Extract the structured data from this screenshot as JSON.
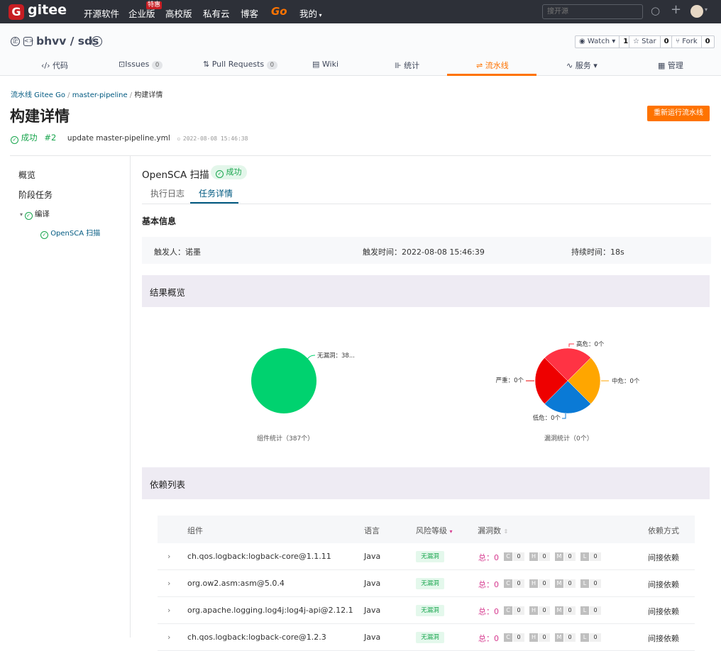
{
  "topbar": {
    "logo_text": "gitee",
    "nav": [
      "开源软件",
      "企业版",
      "高校版",
      "私有云",
      "博客"
    ],
    "hot_badge": "特惠",
    "go_label": "Go",
    "mine": "我的",
    "search_placeholder": "搜开源"
  },
  "repo": {
    "title": "bhvv / sds",
    "watch_label": "Watch",
    "watch_count": "1",
    "star_label": "Star",
    "star_count": "0",
    "fork_label": "Fork",
    "fork_count": "0",
    "tabs": [
      {
        "label": "代码"
      },
      {
        "label": "Issues",
        "count": "0"
      },
      {
        "label": "Pull Requests",
        "count": "0"
      },
      {
        "label": "Wiki"
      },
      {
        "label": "统计"
      },
      {
        "label": "流水线"
      },
      {
        "label": "服务"
      },
      {
        "label": "管理"
      }
    ]
  },
  "breadcrumb": {
    "part1": "流水线 Gitee Go",
    "part2": "master-pipeline",
    "part3": "构建详情"
  },
  "page": {
    "title": "构建详情",
    "rerun_button": "重新运行流水线",
    "status": "成功",
    "run_number": "#2",
    "commit_message": "update master-pipeline.yml",
    "timestamp": "2022-08-08 15:46:38"
  },
  "sidebar": {
    "overview": "概览",
    "stages": "阶段任务",
    "stage_name": "编译",
    "job_name": "OpenSCA 扫描"
  },
  "job": {
    "title": "OpenSCA 扫描",
    "status": "成功",
    "tab_log": "执行日志",
    "tab_detail": "任务详情",
    "basic_info_title": "基本信息",
    "trigger": "触发人：诺墨",
    "trigger_time": "触发时间：2022-08-08 15:46:39",
    "duration": "持续时间：18s",
    "overview_title": "结果概览",
    "deps_title": "依赖列表"
  },
  "chart_data": [
    {
      "type": "pie",
      "caption": "组件统计（387个）",
      "slices": [
        {
          "label": "无漏洞：38...",
          "value": 387,
          "color": "#00d26f"
        }
      ]
    },
    {
      "type": "pie",
      "caption": "漏洞统计（0个）",
      "slices": [
        {
          "label": "高危：0个",
          "value": 0,
          "color": "#ff3344"
        },
        {
          "label": "中危：0个",
          "value": 0,
          "color": "#ffa600"
        },
        {
          "label": "低危：0个",
          "value": 0,
          "color": "#0a7ad6"
        },
        {
          "label": "严重：0个",
          "value": 0,
          "color": "#ee0000"
        }
      ]
    }
  ],
  "table": {
    "headers": {
      "component": "组件",
      "language": "语言",
      "risk": "风险等级",
      "vulns": "漏洞数",
      "dep": "依赖方式"
    },
    "rows": [
      {
        "component": "ch.qos.logback:logback-core@1.1.11",
        "language": "Java",
        "risk": "无漏洞",
        "total": "总：0",
        "c": "0",
        "h": "0",
        "m": "0",
        "l": "0",
        "dep": "间接依赖"
      },
      {
        "component": "org.ow2.asm:asm@5.0.4",
        "language": "Java",
        "risk": "无漏洞",
        "total": "总：0",
        "c": "0",
        "h": "0",
        "m": "0",
        "l": "0",
        "dep": "间接依赖"
      },
      {
        "component": "org.apache.logging.log4j:log4j-api@2.12.1",
        "language": "Java",
        "risk": "无漏洞",
        "total": "总：0",
        "c": "0",
        "h": "0",
        "m": "0",
        "l": "0",
        "dep": "间接依赖"
      },
      {
        "component": "ch.qos.logback:logback-core@1.2.3",
        "language": "Java",
        "risk": "无漏洞",
        "total": "总：0",
        "c": "0",
        "h": "0",
        "m": "0",
        "l": "0",
        "dep": "间接依赖"
      }
    ]
  }
}
